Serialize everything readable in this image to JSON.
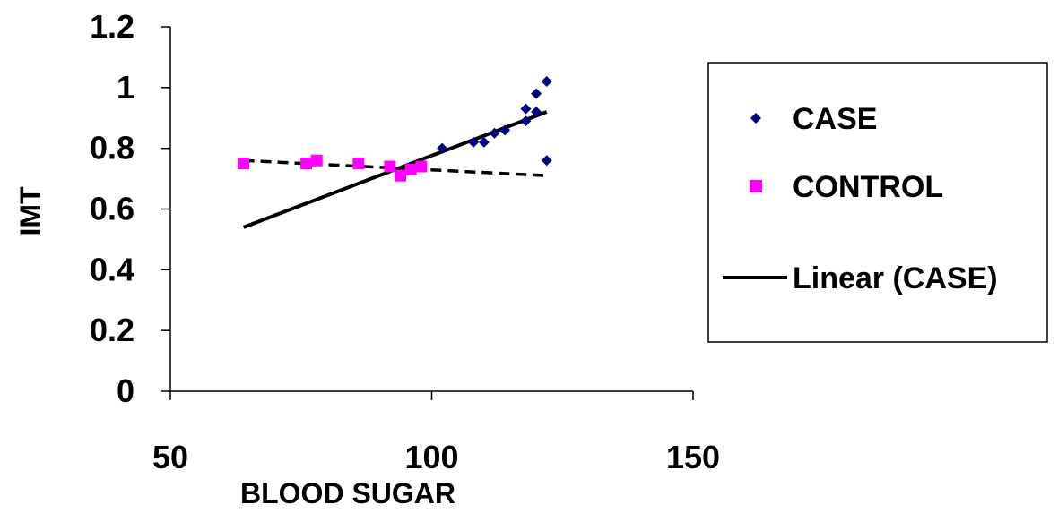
{
  "chart_data": {
    "type": "scatter",
    "title": "",
    "xlabel": "BLOOD SUGAR",
    "ylabel": "IMT",
    "xlim": [
      50,
      150
    ],
    "ylim": [
      0,
      1.2
    ],
    "x_ticks": [
      "50",
      "100",
      "150"
    ],
    "y_ticks": [
      "0",
      "0.2",
      "0.4",
      "0.6",
      "0.8",
      "1",
      "1.2"
    ],
    "grid": false,
    "legend_position": "right",
    "series": [
      {
        "name": "CASE",
        "marker": "diamond",
        "color": "#000080",
        "points": [
          [
            102,
            0.8
          ],
          [
            108,
            0.82
          ],
          [
            110,
            0.82
          ],
          [
            112,
            0.85
          ],
          [
            114,
            0.86
          ],
          [
            118,
            0.89
          ],
          [
            118,
            0.93
          ],
          [
            120,
            0.92
          ],
          [
            120,
            0.98
          ],
          [
            122,
            1.02
          ],
          [
            122,
            0.76
          ]
        ]
      },
      {
        "name": "CONTROL",
        "marker": "square",
        "color": "#ff00ff",
        "points": [
          [
            64,
            0.75
          ],
          [
            76,
            0.75
          ],
          [
            78,
            0.76
          ],
          [
            86,
            0.75
          ],
          [
            92,
            0.74
          ],
          [
            94,
            0.71
          ],
          [
            96,
            0.73
          ],
          [
            98,
            0.74
          ]
        ]
      }
    ],
    "trendlines": [
      {
        "name": "Linear (CASE)",
        "style": "solid",
        "color": "#000000",
        "from": [
          64,
          0.54
        ],
        "to": [
          122,
          0.92
        ]
      },
      {
        "name": "",
        "style": "dashed",
        "color": "#000000",
        "from": [
          64,
          0.76
        ],
        "to": [
          122,
          0.71
        ]
      }
    ],
    "legend": [
      {
        "label": "CASE",
        "kind": "diamond",
        "color": "#000080"
      },
      {
        "label": "CONTROL",
        "kind": "square",
        "color": "#ff00ff"
      },
      {
        "label": "Linear (CASE)",
        "kind": "line",
        "color": "#000000"
      }
    ]
  }
}
